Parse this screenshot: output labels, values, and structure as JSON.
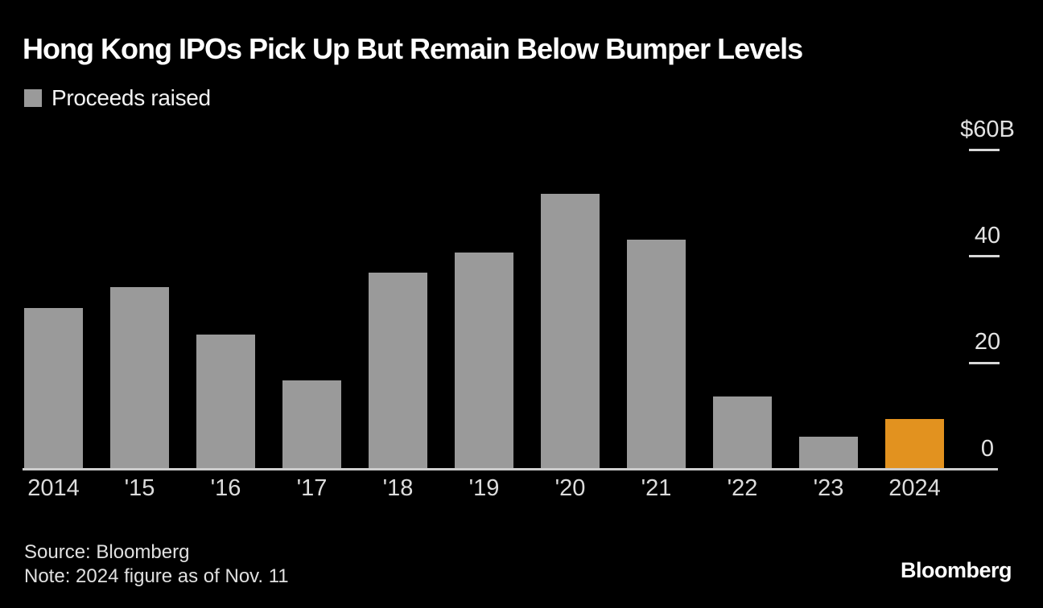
{
  "header": {
    "title": "Hong Kong IPOs Pick Up But Remain Below Bumper Levels"
  },
  "legend": {
    "label": "Proceeds raised",
    "swatch_color": "#9a9a9a"
  },
  "chart_data": {
    "type": "bar",
    "title": "Hong Kong IPOs Pick Up But Remain Below Bumper Levels",
    "series": [
      {
        "name": "Proceeds raised",
        "values": [
          30.1,
          34.0,
          25.1,
          16.4,
          36.7,
          40.5,
          51.6,
          42.9,
          13.4,
          5.9,
          9.2
        ]
      }
    ],
    "categories": [
      "2014",
      "'15",
      "'16",
      "'17",
      "'18",
      "'19",
      "'20",
      "'21",
      "'22",
      "'23",
      "2024"
    ],
    "ylim": [
      0,
      60
    ],
    "yticks": [
      {
        "label": "$60B",
        "value": 60,
        "dash": true
      },
      {
        "label": "40",
        "value": 40,
        "dash": true
      },
      {
        "label": "20",
        "value": 20,
        "dash": true
      },
      {
        "label": "0",
        "value": 0,
        "dash": false
      }
    ],
    "bar_color": "#9a9a9a",
    "highlight": {
      "index": 10,
      "category": "2024",
      "color": "#e2921f"
    },
    "grid": false,
    "legend_position": "top-left",
    "axis_line_color": "#cccccc",
    "background_color": "#000000"
  },
  "footer": {
    "source": "Source: Bloomberg",
    "note": "Note: 2024 figure as of Nov. 11",
    "brand": "Bloomberg"
  }
}
